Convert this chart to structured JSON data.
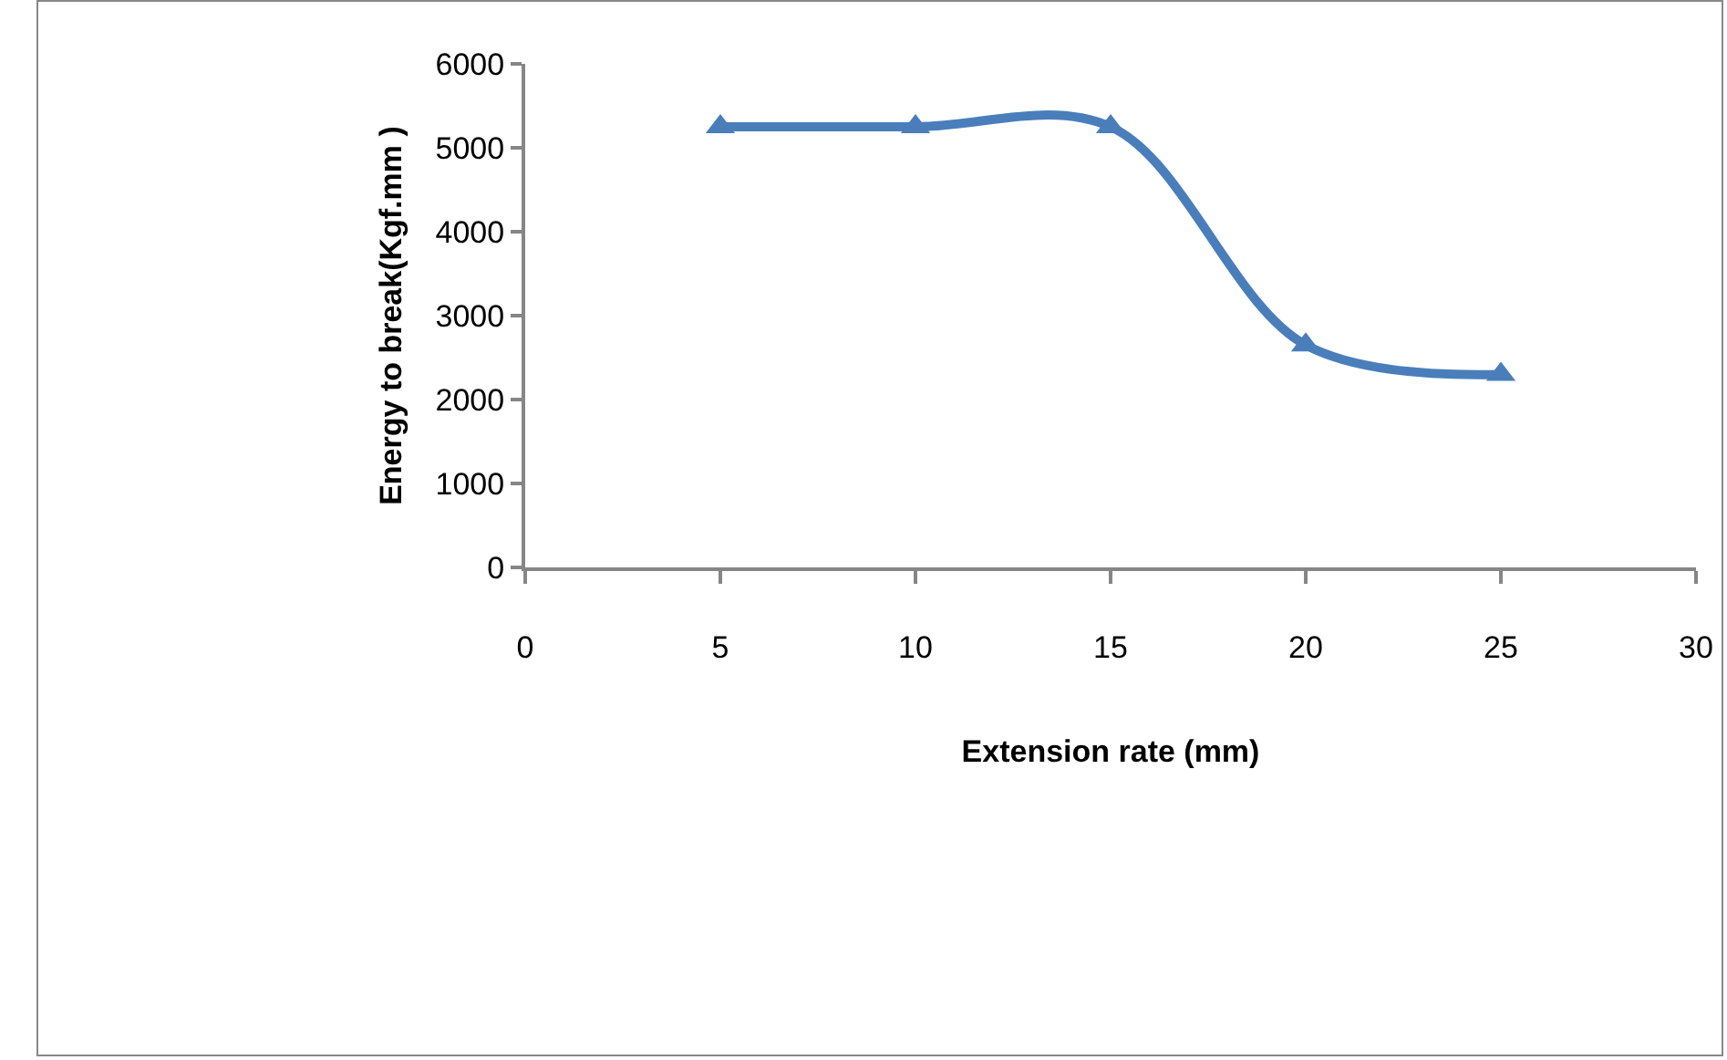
{
  "chart_data": {
    "type": "line",
    "xlabel": "Extension rate (mm)",
    "ylabel": "Energy to break(Kgf.mm )",
    "x": [
      5,
      10,
      15,
      20,
      25
    ],
    "series": [
      {
        "color": "#4a7ebb",
        "values": [
          5250,
          5250,
          5250,
          2650,
          2300
        ]
      }
    ],
    "xlim": [
      0,
      30
    ],
    "xticks": [
      0,
      5,
      10,
      15,
      20,
      25,
      30
    ],
    "ylim": [
      0,
      6000
    ],
    "yticks": [
      0,
      1000,
      2000,
      3000,
      4000,
      5000,
      6000
    ],
    "grid": false,
    "marker": "triangle",
    "line_style": "solid"
  }
}
